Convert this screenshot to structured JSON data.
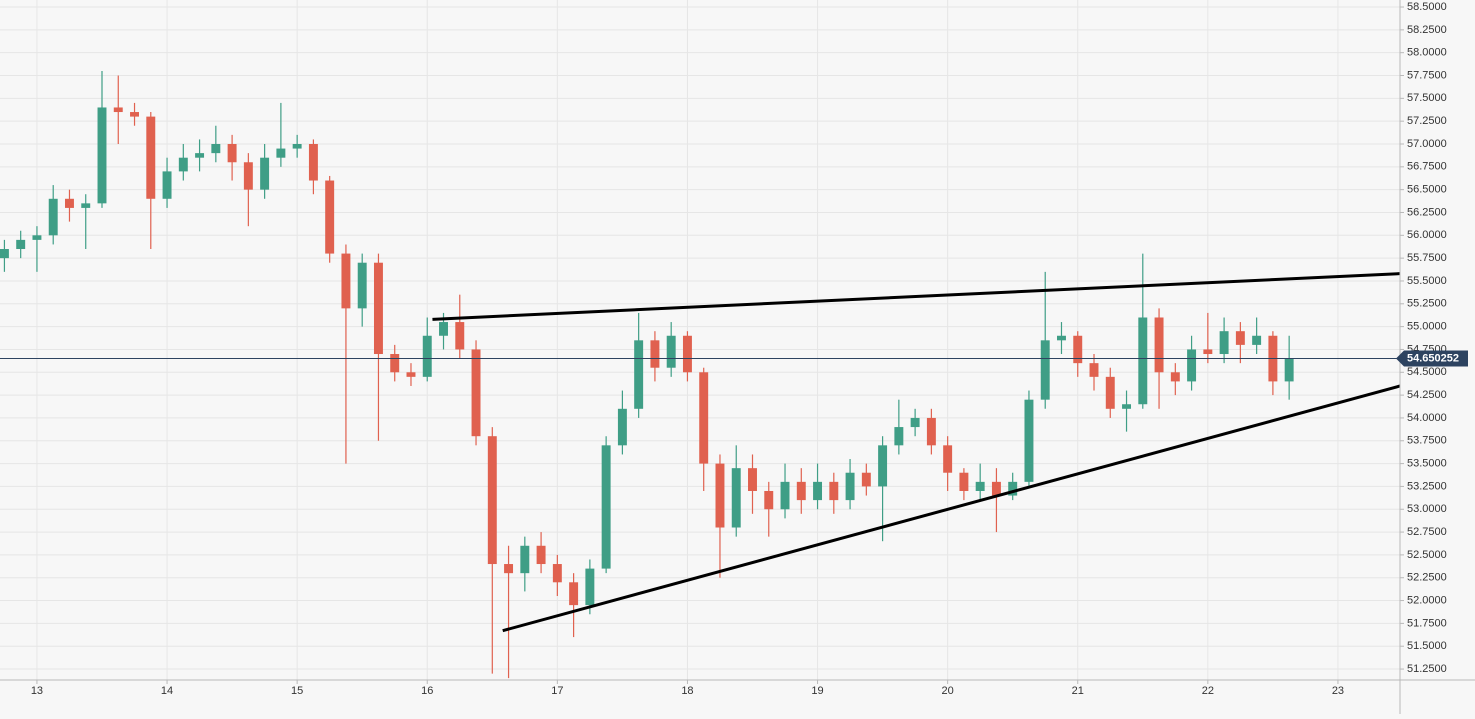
{
  "chart_data": {
    "type": "candlestick",
    "up_color": "#3f9e86",
    "down_color": "#e0614f",
    "grid": true,
    "xlim": [
      12.716,
      23.477
    ],
    "ylim": [
      51.13,
      58.577
    ],
    "xticks": [
      13,
      14,
      15,
      16,
      17,
      18,
      19,
      20,
      21,
      22,
      23
    ],
    "yticks": [
      {
        "value": 51.25,
        "label": "51.2500"
      },
      {
        "value": 51.5,
        "label": "51.5000"
      },
      {
        "value": 51.75,
        "label": "51.7500"
      },
      {
        "value": 52,
        "label": "52.0000"
      },
      {
        "value": 52.25,
        "label": "52.2500"
      },
      {
        "value": 52.5,
        "label": "52.5000"
      },
      {
        "value": 52.75,
        "label": "52.7500"
      },
      {
        "value": 53,
        "label": "53.0000"
      },
      {
        "value": 53.25,
        "label": "53.2500"
      },
      {
        "value": 53.5,
        "label": "53.5000"
      },
      {
        "value": 53.75,
        "label": "53.7500"
      },
      {
        "value": 54,
        "label": "54.0000"
      },
      {
        "value": 54.25,
        "label": "54.2500"
      },
      {
        "value": 54.5,
        "label": "54.5000"
      },
      {
        "value": 54.75,
        "label": "54.7500"
      },
      {
        "value": 55,
        "label": "55.0000"
      },
      {
        "value": 55.25,
        "label": "55.2500"
      },
      {
        "value": 55.5,
        "label": "55.5000"
      },
      {
        "value": 55.75,
        "label": "55.7500"
      },
      {
        "value": 56,
        "label": "56.0000"
      },
      {
        "value": 56.25,
        "label": "56.2500"
      },
      {
        "value": 56.5,
        "label": "56.5000"
      },
      {
        "value": 56.75,
        "label": "56.7500"
      },
      {
        "value": 57,
        "label": "57.0000"
      },
      {
        "value": 57.25,
        "label": "57.2500"
      },
      {
        "value": 57.5,
        "label": "57.5000"
      },
      {
        "value": 57.75,
        "label": "57.7500"
      },
      {
        "value": 58,
        "label": "58.0000"
      },
      {
        "value": 58.25,
        "label": "58.2500"
      },
      {
        "value": 58.5,
        "label": "58.5000"
      }
    ],
    "last_price": 54.650252,
    "x": [
      12.75,
      12.875,
      13.0,
      13.125,
      13.25,
      13.375,
      13.5,
      13.625,
      13.75,
      13.875,
      14.0,
      14.125,
      14.25,
      14.375,
      14.5,
      14.625,
      14.75,
      14.875,
      15.0,
      15.125,
      15.25,
      15.375,
      15.5,
      15.625,
      15.75,
      15.875,
      16.0,
      16.125,
      16.25,
      16.375,
      16.5,
      16.625,
      16.75,
      16.875,
      17.0,
      17.125,
      17.25,
      17.375,
      17.5,
      17.625,
      17.75,
      17.875,
      18.0,
      18.125,
      18.25,
      18.375,
      18.5,
      18.625,
      18.75,
      18.875,
      19.0,
      19.125,
      19.25,
      19.375,
      19.5,
      19.625,
      19.75,
      19.875,
      20.0,
      20.125,
      20.25,
      20.375,
      20.5,
      20.625,
      20.75,
      20.875,
      21.0,
      21.125,
      21.25,
      21.375,
      21.5,
      21.625,
      21.75,
      21.875,
      22.0,
      22.125,
      22.25,
      22.375,
      22.5,
      22.625
    ],
    "open": [
      55.75,
      55.85,
      55.95,
      56.0,
      56.4,
      56.3,
      56.35,
      57.4,
      57.35,
      57.3,
      56.4,
      56.7,
      56.85,
      56.9,
      57.0,
      56.8,
      56.5,
      56.85,
      56.95,
      57.0,
      56.6,
      55.8,
      55.2,
      55.7,
      54.7,
      54.5,
      54.45,
      54.9,
      55.05,
      54.75,
      53.8,
      52.4,
      52.3,
      52.6,
      52.4,
      52.2,
      51.95,
      52.35,
      53.7,
      54.1,
      54.85,
      54.55,
      54.9,
      54.5,
      53.5,
      52.8,
      53.45,
      53.2,
      53.0,
      53.3,
      53.1,
      53.3,
      53.1,
      53.4,
      53.25,
      53.7,
      53.9,
      54.0,
      53.7,
      53.4,
      53.2,
      53.3,
      53.15,
      53.3,
      54.2,
      54.85,
      54.9,
      54.6,
      54.45,
      54.1,
      54.15,
      55.1,
      54.5,
      54.4,
      54.75,
      54.7,
      54.95,
      54.8,
      54.9,
      54.4
    ],
    "high": [
      55.95,
      56.05,
      56.1,
      56.55,
      56.5,
      56.45,
      57.8,
      57.75,
      57.45,
      57.35,
      56.85,
      57.0,
      57.05,
      57.2,
      57.1,
      56.9,
      57.0,
      57.45,
      57.1,
      57.05,
      56.65,
      55.9,
      55.8,
      55.8,
      54.8,
      54.6,
      55.1,
      55.15,
      55.35,
      54.85,
      53.9,
      52.6,
      52.7,
      52.75,
      52.5,
      52.3,
      52.45,
      53.8,
      54.3,
      55.15,
      54.95,
      55.05,
      54.95,
      54.55,
      53.6,
      53.7,
      53.6,
      53.3,
      53.5,
      53.45,
      53.5,
      53.4,
      53.55,
      53.5,
      53.8,
      54.2,
      54.1,
      54.1,
      53.8,
      53.45,
      53.5,
      53.45,
      53.4,
      54.3,
      55.6,
      55.05,
      54.95,
      54.7,
      54.55,
      54.3,
      55.8,
      55.2,
      54.6,
      54.9,
      55.15,
      55.1,
      55.05,
      55.1,
      54.95,
      54.9
    ],
    "low": [
      55.6,
      55.75,
      55.6,
      55.9,
      56.15,
      55.85,
      56.3,
      57.0,
      57.2,
      55.85,
      56.3,
      56.6,
      56.7,
      56.8,
      56.6,
      56.1,
      56.4,
      56.75,
      56.85,
      56.45,
      55.7,
      53.5,
      55.0,
      53.75,
      54.4,
      54.35,
      54.4,
      54.75,
      54.65,
      53.7,
      51.2,
      51.15,
      52.1,
      52.3,
      52.05,
      51.6,
      51.85,
      52.3,
      53.6,
      54.0,
      54.4,
      54.45,
      54.4,
      53.2,
      52.25,
      52.7,
      52.95,
      52.7,
      52.9,
      52.95,
      53.0,
      52.95,
      53.0,
      53.15,
      52.65,
      53.6,
      53.8,
      53.6,
      53.2,
      53.1,
      53.1,
      52.75,
      53.1,
      53.25,
      54.1,
      54.7,
      54.45,
      54.3,
      54.0,
      53.85,
      54.1,
      54.1,
      54.25,
      54.3,
      54.6,
      54.6,
      54.6,
      54.7,
      54.25,
      54.2
    ],
    "close": [
      55.85,
      55.95,
      56.0,
      56.4,
      56.3,
      56.35,
      57.4,
      57.35,
      57.3,
      56.4,
      56.7,
      56.85,
      56.9,
      57.0,
      56.8,
      56.5,
      56.85,
      56.95,
      57.0,
      56.6,
      55.8,
      55.2,
      55.7,
      54.7,
      54.5,
      54.45,
      54.9,
      55.05,
      54.75,
      53.8,
      52.4,
      52.3,
      52.6,
      52.4,
      52.2,
      51.95,
      52.35,
      53.7,
      54.1,
      54.85,
      54.55,
      54.9,
      54.5,
      53.5,
      52.8,
      53.45,
      53.2,
      53.0,
      53.3,
      53.1,
      53.3,
      53.1,
      53.4,
      53.25,
      53.7,
      53.9,
      54.0,
      53.7,
      53.4,
      53.2,
      53.3,
      53.15,
      53.3,
      54.2,
      54.85,
      54.9,
      54.6,
      54.45,
      54.1,
      54.15,
      55.1,
      54.5,
      54.4,
      54.75,
      54.7,
      54.95,
      54.8,
      54.9,
      54.4,
      54.65
    ],
    "trendlines": [
      {
        "x": [
          16.04,
          23.477
        ],
        "y": [
          55.08,
          55.58
        ]
      },
      {
        "x": [
          16.58,
          23.477
        ],
        "y": [
          51.67,
          54.35
        ]
      }
    ]
  }
}
